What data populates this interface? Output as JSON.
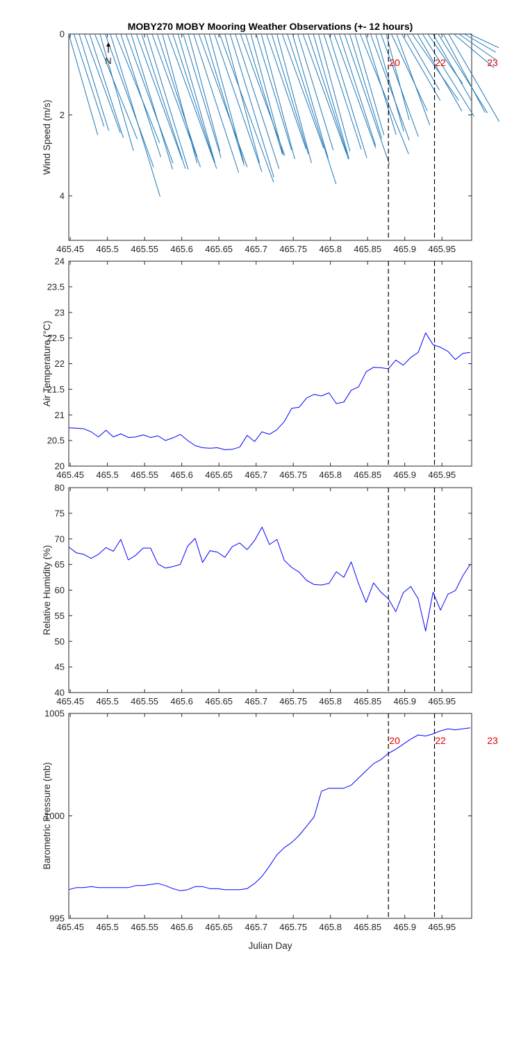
{
  "figure": {
    "title": "MOBY270 MOBY Mooring Weather Observations (+- 12 hours)",
    "xlabel": "Julian Day",
    "north_label": "N",
    "colors": {
      "wind": "#1f77b4",
      "series": "#0000ff",
      "marker": "#000000",
      "annotation": "#e00000",
      "axis": "#262626"
    }
  },
  "chart_data": [
    {
      "type": "line",
      "title": "MOBY270 MOBY Mooring Weather Observations (+- 12 hours)",
      "xlabel": "",
      "ylabel": "Wind Speed (m/s)",
      "xlim": [
        465.448,
        465.99
      ],
      "ylim": [
        0,
        5.1
      ],
      "y_inverted": true,
      "xticks": [
        "465.45",
        "465.5",
        "465.55",
        "465.6",
        "465.65",
        "465.7",
        "465.75",
        "465.8",
        "465.85",
        "465.9",
        "465.95"
      ],
      "yticks": [
        "0",
        "2",
        "4"
      ],
      "vlines": [
        465.878,
        465.94
      ],
      "annotations": [
        "20",
        "22",
        "23"
      ],
      "x": [
        465.448,
        465.455,
        465.462,
        465.469,
        465.476,
        465.483,
        465.49,
        465.497,
        465.504,
        465.511,
        465.518,
        465.525,
        465.532,
        465.539,
        465.546,
        465.553,
        465.56,
        465.567,
        465.574,
        465.581,
        465.588,
        465.595,
        465.602,
        465.609,
        465.616,
        465.623,
        465.63,
        465.637,
        465.644,
        465.651,
        465.658,
        465.665,
        465.672,
        465.679,
        465.686,
        465.693,
        465.7,
        465.707,
        465.714,
        465.721,
        465.728,
        465.735,
        465.742,
        465.749,
        465.756,
        465.763,
        465.77,
        465.777,
        465.784,
        465.791,
        465.798,
        465.805,
        465.812,
        465.819,
        465.826,
        465.833,
        465.84,
        465.847,
        465.854,
        465.861,
        465.868,
        465.875,
        465.882,
        465.889,
        465.896,
        465.903,
        465.91,
        465.917,
        465.924,
        465.931,
        465.938,
        465.945,
        465.952,
        465.959,
        465.966,
        465.973,
        465.98,
        465.987
      ],
      "speed": [
        2.6,
        2.4,
        2.5,
        2.6,
        2.7,
        2.8,
        3.0,
        3.5,
        4.2,
        2.9,
        3.2,
        3.4,
        3.5,
        3.3,
        3.5,
        3.5,
        3.5,
        3.2,
        3.3,
        3.4,
        3.5,
        3.3,
        3.2,
        3.0,
        3.6,
        3.5,
        3.4,
        3.3,
        3.6,
        3.9,
        3.3,
        3.7,
        3.5,
        3.2,
        3.1,
        3.1,
        3.0,
        3.2,
        3.0,
        3.1,
        3.3,
        3.0,
        3.9,
        3.2,
        3.0,
        3.3,
        3.1,
        3.2,
        3.0,
        3.0,
        3.2,
        3.0,
        2.9,
        3.4,
        2.7,
        2.6,
        3.2,
        2.6,
        2.8,
        2.5,
        2.7,
        2.2,
        2.1,
        2.4,
        1.9,
        1.6,
        2.0,
        2.2,
        2.4,
        1.5,
        1.9,
        2.3,
        2.2,
        2.5,
        1.3,
        1.1,
        0.9,
        0.8
      ],
      "dir": [
        164,
        162,
        163,
        160,
        162,
        158,
        164,
        160,
        163,
        158,
        162,
        160,
        163,
        160,
        162,
        163,
        160,
        162,
        165,
        160,
        162,
        164,
        163,
        165,
        162,
        160,
        163,
        165,
        161,
        160,
        165,
        163,
        162,
        160,
        163,
        165,
        163,
        165,
        161,
        163,
        165,
        160,
        162,
        164,
        163,
        160,
        162,
        164,
        165,
        162,
        163,
        160,
        162,
        161,
        163,
        164,
        158,
        163,
        160,
        164,
        160,
        165,
        155,
        160,
        150,
        150,
        145,
        150,
        148,
        145,
        150,
        148,
        152,
        150,
        130,
        125,
        120,
        115
      ]
    },
    {
      "type": "line",
      "title": "",
      "xlabel": "",
      "ylabel": "Air Temperature (°C)",
      "xlim": [
        465.448,
        465.99
      ],
      "ylim": [
        20,
        24
      ],
      "xticks": [
        "465.45",
        "465.5",
        "465.55",
        "465.6",
        "465.65",
        "465.7",
        "465.75",
        "465.8",
        "465.85",
        "465.9",
        "465.95"
      ],
      "yticks": [
        "20",
        "20.5",
        "21",
        "21.5",
        "22",
        "22.5",
        "23",
        "23.5",
        "24"
      ],
      "vlines": [
        465.878,
        465.94
      ],
      "x": [
        465.448,
        465.458,
        465.468,
        465.478,
        465.488,
        465.498,
        465.508,
        465.518,
        465.528,
        465.538,
        465.548,
        465.558,
        465.568,
        465.578,
        465.588,
        465.598,
        465.608,
        465.618,
        465.628,
        465.638,
        465.648,
        465.658,
        465.668,
        465.678,
        465.688,
        465.698,
        465.708,
        465.718,
        465.728,
        465.738,
        465.748,
        465.758,
        465.768,
        465.778,
        465.788,
        465.798,
        465.808,
        465.818,
        465.828,
        465.838,
        465.848,
        465.858,
        465.868,
        465.878,
        465.888,
        465.898,
        465.908,
        465.918,
        465.928,
        465.938,
        465.948,
        465.958,
        465.968,
        465.978,
        465.988
      ],
      "y": [
        20.75,
        20.74,
        20.73,
        20.67,
        20.57,
        20.7,
        20.57,
        20.63,
        20.56,
        20.57,
        20.61,
        20.56,
        20.59,
        20.5,
        20.55,
        20.62,
        20.5,
        20.4,
        20.36,
        20.35,
        20.36,
        20.32,
        20.33,
        20.37,
        20.6,
        20.48,
        20.67,
        20.62,
        20.71,
        20.87,
        21.13,
        21.15,
        21.33,
        21.4,
        21.37,
        21.43,
        21.22,
        21.25,
        21.48,
        21.55,
        21.84,
        21.93,
        21.92,
        21.9,
        22.07,
        21.97,
        22.12,
        22.22,
        22.6,
        22.37,
        22.32,
        22.24,
        22.08,
        22.2,
        22.22
      ]
    },
    {
      "type": "line",
      "title": "",
      "xlabel": "",
      "ylabel": "Relative Humidity (%)",
      "xlim": [
        465.448,
        465.99
      ],
      "ylim": [
        40,
        80
      ],
      "xticks": [
        "465.45",
        "465.5",
        "465.55",
        "465.6",
        "465.65",
        "465.7",
        "465.75",
        "465.8",
        "465.85",
        "465.9",
        "465.95"
      ],
      "yticks": [
        "40",
        "45",
        "50",
        "55",
        "60",
        "65",
        "70",
        "75",
        "80"
      ],
      "vlines": [
        465.878,
        465.94
      ],
      "x": [
        465.448,
        465.458,
        465.468,
        465.478,
        465.488,
        465.498,
        465.508,
        465.518,
        465.528,
        465.538,
        465.548,
        465.558,
        465.568,
        465.578,
        465.588,
        465.598,
        465.608,
        465.618,
        465.628,
        465.638,
        465.648,
        465.658,
        465.668,
        465.678,
        465.688,
        465.698,
        465.708,
        465.718,
        465.728,
        465.738,
        465.748,
        465.758,
        465.768,
        465.778,
        465.788,
        465.798,
        465.808,
        465.818,
        465.828,
        465.838,
        465.848,
        465.858,
        465.868,
        465.878,
        465.888,
        465.898,
        465.908,
        465.918,
        465.928,
        465.938,
        465.948,
        465.958,
        465.968,
        465.978,
        465.988
      ],
      "y": [
        68.4,
        67.3,
        67.0,
        66.2,
        67.0,
        68.3,
        67.6,
        69.9,
        65.9,
        66.8,
        68.2,
        68.2,
        65.1,
        64.3,
        64.6,
        65.0,
        68.6,
        70.1,
        65.4,
        67.7,
        67.4,
        66.4,
        68.5,
        69.2,
        67.9,
        69.7,
        72.3,
        68.9,
        69.9,
        65.8,
        64.4,
        63.5,
        61.9,
        61.1,
        61.0,
        61.3,
        63.6,
        62.5,
        65.5,
        61.2,
        57.6,
        61.4,
        59.6,
        58.3,
        55.8,
        59.5,
        60.7,
        58.3,
        52.0,
        59.6,
        56.1,
        59.2,
        59.9,
        62.8,
        65.0
      ]
    },
    {
      "type": "line",
      "title": "",
      "xlabel": "Julian Day",
      "ylabel": "Barometric Pressure (mb)",
      "xlim": [
        465.448,
        465.99
      ],
      "ylim": [
        995,
        1005
      ],
      "xticks": [
        "465.45",
        "465.5",
        "465.55",
        "465.6",
        "465.65",
        "465.7",
        "465.75",
        "465.8",
        "465.85",
        "465.9",
        "465.95"
      ],
      "yticks": [
        "995",
        "1000",
        "1005"
      ],
      "vlines": [
        465.878,
        465.94
      ],
      "annotations": [
        "20",
        "22",
        "23"
      ],
      "x": [
        465.448,
        465.458,
        465.468,
        465.478,
        465.488,
        465.498,
        465.508,
        465.518,
        465.528,
        465.538,
        465.548,
        465.558,
        465.568,
        465.578,
        465.588,
        465.598,
        465.608,
        465.618,
        465.628,
        465.638,
        465.648,
        465.658,
        465.668,
        465.678,
        465.688,
        465.698,
        465.708,
        465.718,
        465.728,
        465.738,
        465.748,
        465.758,
        465.768,
        465.778,
        465.788,
        465.798,
        465.808,
        465.818,
        465.828,
        465.838,
        465.848,
        465.858,
        465.868,
        465.878,
        465.888,
        465.898,
        465.908,
        465.918,
        465.928,
        465.938,
        465.948,
        465.958,
        465.968,
        465.978,
        465.988
      ],
      "y": [
        996.4,
        996.5,
        996.5,
        996.55,
        996.5,
        996.5,
        996.5,
        996.5,
        996.5,
        996.6,
        996.6,
        996.65,
        996.7,
        996.6,
        996.45,
        996.35,
        996.4,
        996.55,
        996.55,
        996.45,
        996.45,
        996.4,
        996.4,
        996.4,
        996.45,
        996.7,
        997.05,
        997.55,
        998.1,
        998.45,
        998.7,
        999.05,
        999.5,
        999.95,
        1001.2,
        1001.35,
        1001.35,
        1001.35,
        1001.5,
        1001.85,
        1002.2,
        1002.55,
        1002.75,
        1003.05,
        1003.25,
        1003.5,
        1003.75,
        1003.95,
        1003.9,
        1004.0,
        1004.15,
        1004.25,
        1004.2,
        1004.25,
        1004.3
      ]
    }
  ]
}
